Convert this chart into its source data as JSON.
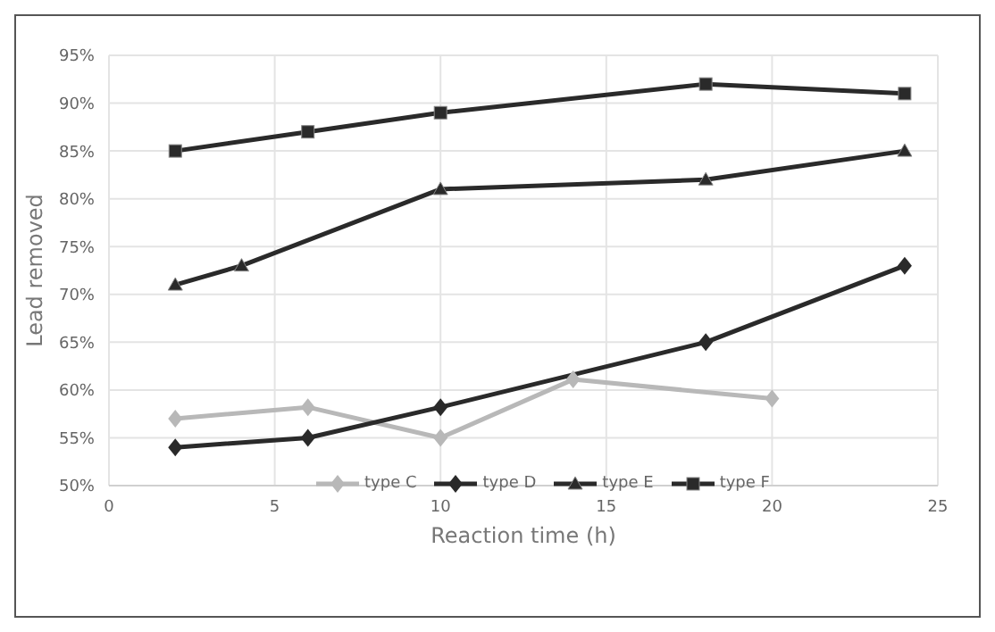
{
  "chart_data": {
    "type": "line",
    "xlabel": "Reaction time (h)",
    "ylabel": "Lead removed",
    "xlim": [
      0,
      25
    ],
    "xticks": [
      0,
      5,
      10,
      15,
      20,
      25
    ],
    "ylim": [
      0.5,
      0.95
    ],
    "yticks": [
      {
        "value": 0.5,
        "label": "50%"
      },
      {
        "value": 0.55,
        "label": "55%"
      },
      {
        "value": 0.6,
        "label": "60%"
      },
      {
        "value": 0.65,
        "label": "65%"
      },
      {
        "value": 0.7,
        "label": "70%"
      },
      {
        "value": 0.75,
        "label": "75%"
      },
      {
        "value": 0.8,
        "label": "80%"
      },
      {
        "value": 0.85,
        "label": "85%"
      },
      {
        "value": 0.9,
        "label": "90%"
      },
      {
        "value": 0.95,
        "label": "95%"
      }
    ],
    "grid": true,
    "legend": "bottom",
    "series": [
      {
        "name": "type C",
        "color": "#b8b8b8",
        "marker": "diamond",
        "x": [
          2,
          6,
          10,
          14,
          20
        ],
        "values": [
          0.57,
          0.582,
          0.55,
          0.611,
          0.591
        ]
      },
      {
        "name": "type D",
        "color": "#2a2a2a",
        "marker": "diamond",
        "x": [
          2,
          6,
          10,
          18,
          24
        ],
        "values": [
          0.54,
          0.55,
          0.582,
          0.65,
          0.73
        ]
      },
      {
        "name": "type E",
        "color": "#2a2a2a",
        "marker": "triangle",
        "x": [
          2,
          4,
          10,
          18,
          24
        ],
        "values": [
          0.71,
          0.73,
          0.81,
          0.82,
          0.85
        ]
      },
      {
        "name": "type F",
        "color": "#2a2a2a",
        "marker": "square",
        "x": [
          2,
          6,
          10,
          18,
          24
        ],
        "values": [
          0.85,
          0.87,
          0.89,
          0.92,
          0.91
        ]
      }
    ]
  }
}
